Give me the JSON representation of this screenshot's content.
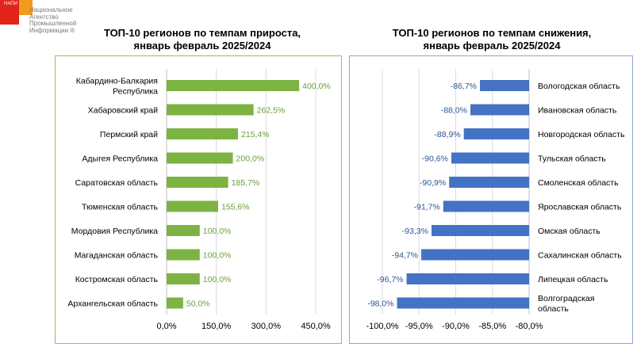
{
  "logo": {
    "abbr": "НАПИ",
    "lines": [
      "Национальное",
      "Агентство",
      "Промышленной",
      "Информации ®"
    ]
  },
  "chart_data": [
    {
      "type": "bar",
      "orientation": "horizontal",
      "title_lines": [
        "ТОП-10 регионов по темпам прироста,",
        "январь февраль 2025/2024"
      ],
      "categories": [
        "Кабардино-Балкария Республика",
        "Хабаровский край",
        "Пермский край",
        "Адыгея Республика",
        "Саратовская область",
        "Тюменская область",
        "Мордовия Республика",
        "Магаданская область",
        "Костромская область",
        "Архангельская область"
      ],
      "values": [
        400.0,
        262.5,
        215.4,
        200.0,
        185.7,
        155.6,
        100.0,
        100.0,
        100.0,
        50.0
      ],
      "labels": [
        "400,0%",
        "262,5%",
        "215,4%",
        "200,0%",
        "185,7%",
        "155,6%",
        "100,0%",
        "100,0%",
        "100,0%",
        "50,0%"
      ],
      "xlim": [
        0,
        450
      ],
      "xticks": [
        0,
        150,
        300,
        450
      ],
      "xtick_labels": [
        "0,0%",
        "150,0%",
        "300,0%",
        "450,0%"
      ],
      "bar_color": "#7cb342",
      "label_color": "#6a9e3a",
      "grid": true
    },
    {
      "type": "bar",
      "orientation": "horizontal",
      "title_lines": [
        "ТОП-10 регионов по темпам снижения,",
        "январь февраль 2025/2024"
      ],
      "categories": [
        "Вологодская область",
        "Ивановская область",
        "Новгородская область",
        "Тульская область",
        "Смоленская область",
        "Ярославская область",
        "Омская область",
        "Сахалинская область",
        "Липецкая область",
        "Волгоградская область"
      ],
      "values": [
        -86.7,
        -88.0,
        -88.9,
        -90.6,
        -90.9,
        -91.7,
        -93.3,
        -94.7,
        -96.7,
        -98.0
      ],
      "labels": [
        "-86,7%",
        "-88,0%",
        "-88,9%",
        "-90,6%",
        "-90,9%",
        "-91,7%",
        "-93,3%",
        "-94,7%",
        "-96,7%",
        "-98,0%"
      ],
      "xlim": [
        -100,
        -80
      ],
      "xticks": [
        -100,
        -95,
        -90,
        -85,
        -80
      ],
      "xtick_labels": [
        "-100,0%",
        "-95,0%",
        "-90,0%",
        "-85,0%",
        "-80,0%"
      ],
      "bar_color": "#4472c4",
      "label_color": "#2f5597",
      "grid": true
    }
  ]
}
